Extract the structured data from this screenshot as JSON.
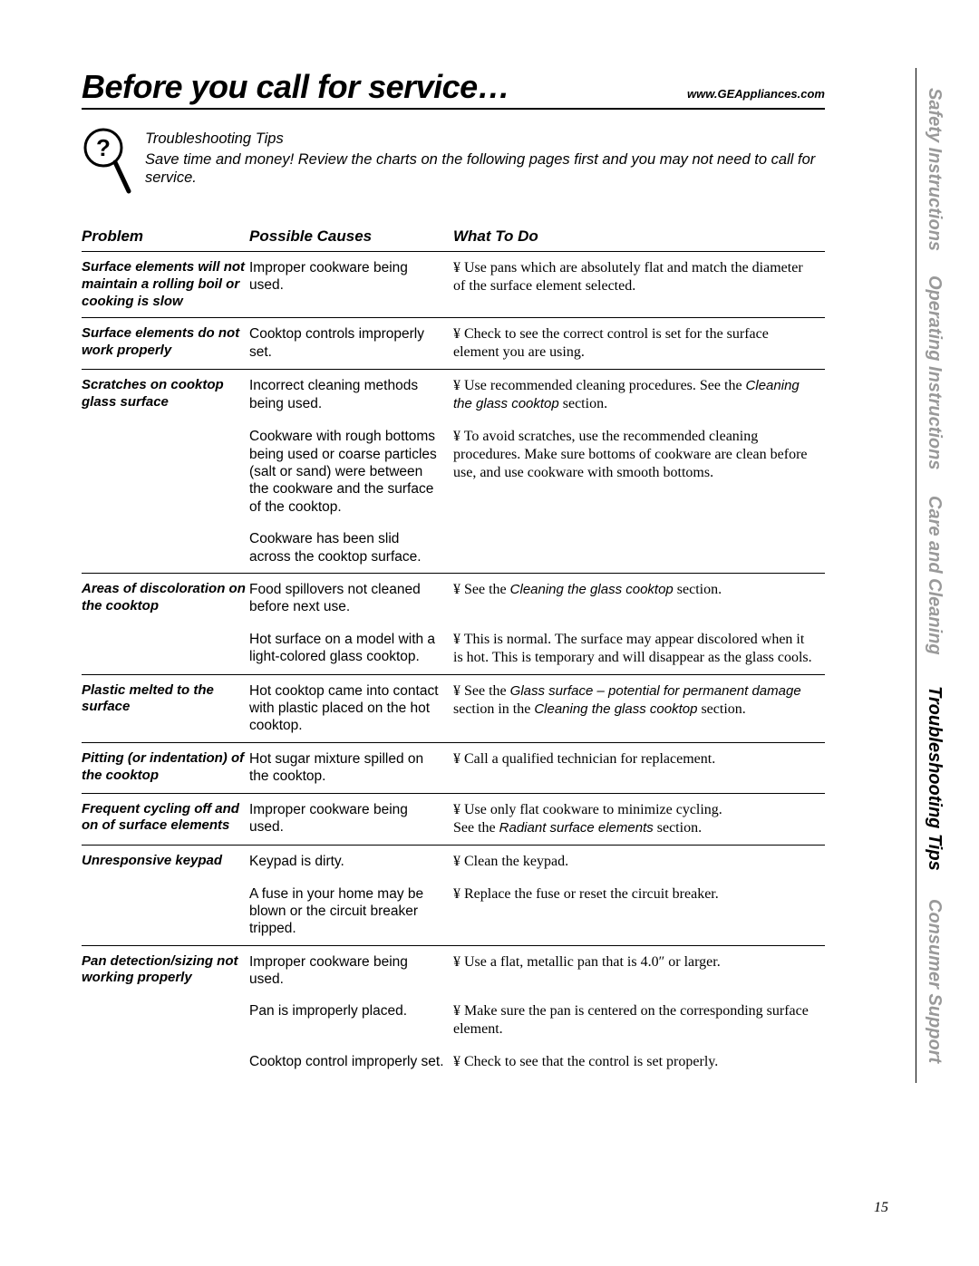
{
  "heading": "Before you call for service…",
  "site_url": "www.GEAppliances.com",
  "intro": {
    "tip_title": "Troubleshooting Tips",
    "tip_body": "Save time and money! Review the charts on the following pages first and you may not need to call for service."
  },
  "columns": {
    "problem": "Problem",
    "causes": "Possible Causes",
    "todo": "What To Do"
  },
  "bullet_glyph": "¥",
  "rows": [
    {
      "problem": "Surface elements will not maintain a rolling boil or cooking is slow",
      "entries": [
        {
          "cause": "Improper cookware being used.",
          "todo": "Use pans which are absolutely flat and match the diameter of the surface element selected."
        }
      ]
    },
    {
      "problem": "Surface elements do not work properly",
      "entries": [
        {
          "cause": "Cooktop controls improperly set.",
          "todo": "Check to see the correct control is set for the surface element you are using."
        }
      ]
    },
    {
      "problem": "Scratches on cooktop glass surface",
      "entries": [
        {
          "cause": "Incorrect cleaning methods being used.",
          "todo_pre": "Use recommended cleaning procedures. See the ",
          "todo_italic": "Cleaning the glass cooktop",
          "todo_post": " section."
        },
        {
          "cause": "Cookware with rough bottoms being used or coarse particles (salt or sand) were between the cookware and the surface of the cooktop.",
          "todo": "To avoid scratches, use the recommended cleaning procedures. Make sure bottoms of cookware are clean before use, and use cookware with smooth bottoms."
        },
        {
          "cause": "Cookware has been slid across the cooktop surface.",
          "todo": ""
        }
      ]
    },
    {
      "problem": "Areas of discoloration on the cooktop",
      "entries": [
        {
          "cause": "Food spillovers not cleaned before next use.",
          "todo_pre": "See the ",
          "todo_italic": "Cleaning the glass cooktop",
          "todo_post": " section."
        },
        {
          "cause": "Hot surface on a model with a light-colored glass cooktop.",
          "todo": "This is normal. The surface may appear discolored when it is hot. This is temporary and will disappear as the glass cools."
        }
      ]
    },
    {
      "problem": "Plastic melted to the surface",
      "entries": [
        {
          "cause": "Hot cooktop came into contact with plastic placed on the hot cooktop.",
          "todo_pre": "See the ",
          "todo_italic": "Glass surface – potential for permanent damage",
          "todo_mid": " section in the ",
          "todo_italic2": "Cleaning the glass cooktop",
          "todo_post": " section."
        }
      ]
    },
    {
      "problem": "Pitting (or indentation) of the cooktop",
      "entries": [
        {
          "cause": "Hot sugar mixture spilled on the cooktop.",
          "todo": "Call a qualified technician for replacement."
        }
      ]
    },
    {
      "problem": "Frequent cycling off and on of surface elements",
      "entries": [
        {
          "cause": "Improper cookware being used.",
          "todo_pre": "Use only flat cookware to minimize cycling.\nSee the ",
          "todo_italic": "Radiant surface elements",
          "todo_post": " section."
        }
      ]
    },
    {
      "problem": "Unresponsive keypad",
      "entries": [
        {
          "cause": "Keypad is dirty.",
          "todo": "Clean the keypad."
        },
        {
          "cause": "A fuse in your home may be blown or the circuit breaker tripped.",
          "todo": "Replace the fuse or reset the circuit breaker."
        }
      ]
    },
    {
      "problem": "Pan detection/sizing not working properly",
      "entries": [
        {
          "cause": "Improper cookware being used.",
          "todo": "Use a flat, metallic pan that is 4.0″ or larger."
        },
        {
          "cause": "Pan is improperly placed.",
          "todo": "Make sure the pan is centered on the corresponding surface element."
        },
        {
          "cause": "Cooktop control improperly set.",
          "todo": "Check to see that the control is set properly."
        }
      ]
    }
  ],
  "tabs": [
    {
      "label": "Safety Instructions",
      "active": false
    },
    {
      "label": "Operating Instructions",
      "active": false
    },
    {
      "label": "Care and Cleaning",
      "active": false
    },
    {
      "label": "Troubleshooting Tips",
      "active": true
    },
    {
      "label": "Consumer Support",
      "active": false
    }
  ],
  "page_number": "15",
  "colors": {
    "text": "#000000",
    "inactive_tab": "#999999",
    "background": "#ffffff"
  }
}
